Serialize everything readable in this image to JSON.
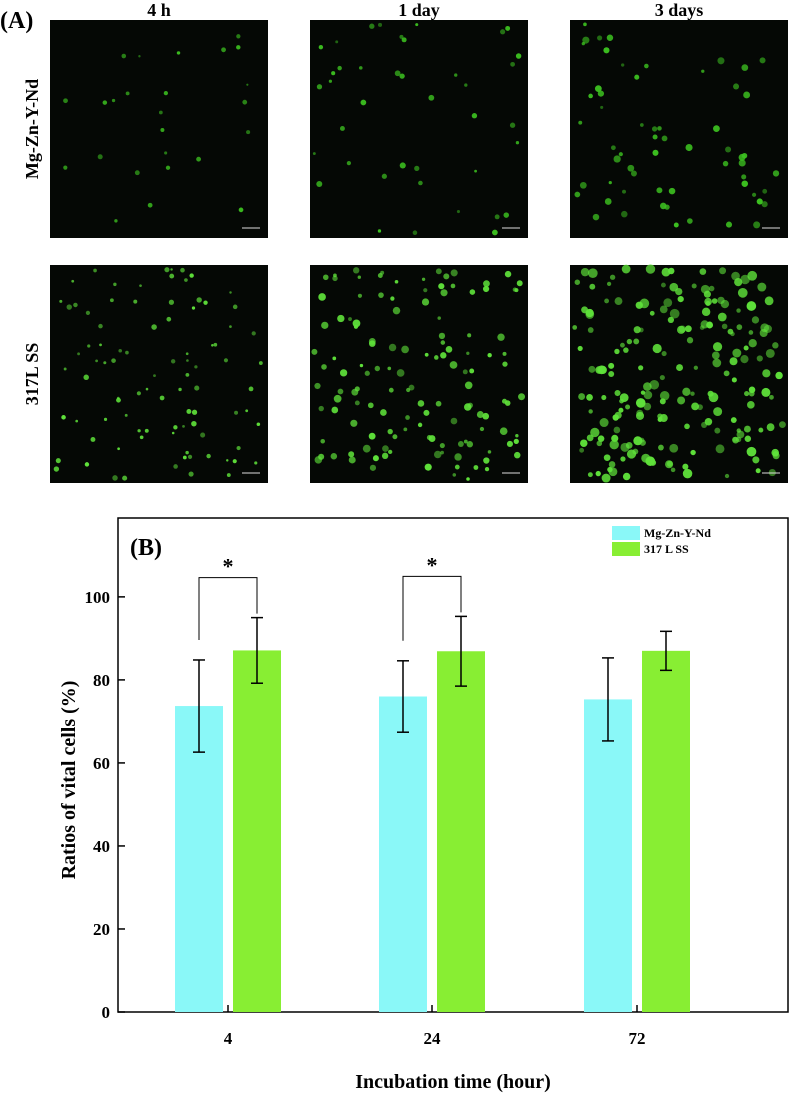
{
  "panel_a": {
    "label": "(A)",
    "columns": [
      "4 h",
      "1 day",
      "3 days"
    ],
    "rows": [
      "Mg-Zn-Y-Nd",
      "317L SS"
    ]
  },
  "chart_data": {
    "type": "bar",
    "label": "(B)",
    "x_label": "Incubation time (hour)",
    "y_label": "Ratios of vital cells (%)",
    "categories": [
      "4",
      "24",
      "72"
    ],
    "series": [
      {
        "name": "Mg-Zn-Y-Nd",
        "color": "#8af8f8",
        "values": [
          73.7,
          76,
          75.3
        ],
        "errors": [
          11.1,
          8.6,
          10
        ]
      },
      {
        "name": "317 L SS",
        "color": "#88ee33",
        "values": [
          87.1,
          86.9,
          87
        ],
        "errors": [
          7.9,
          8.4,
          4.7
        ]
      }
    ],
    "annotations": [
      "*",
      "*"
    ],
    "ylim": [
      0,
      119
    ],
    "yticks": [
      0,
      20,
      40,
      60,
      80,
      100
    ],
    "legend": "upper right"
  }
}
